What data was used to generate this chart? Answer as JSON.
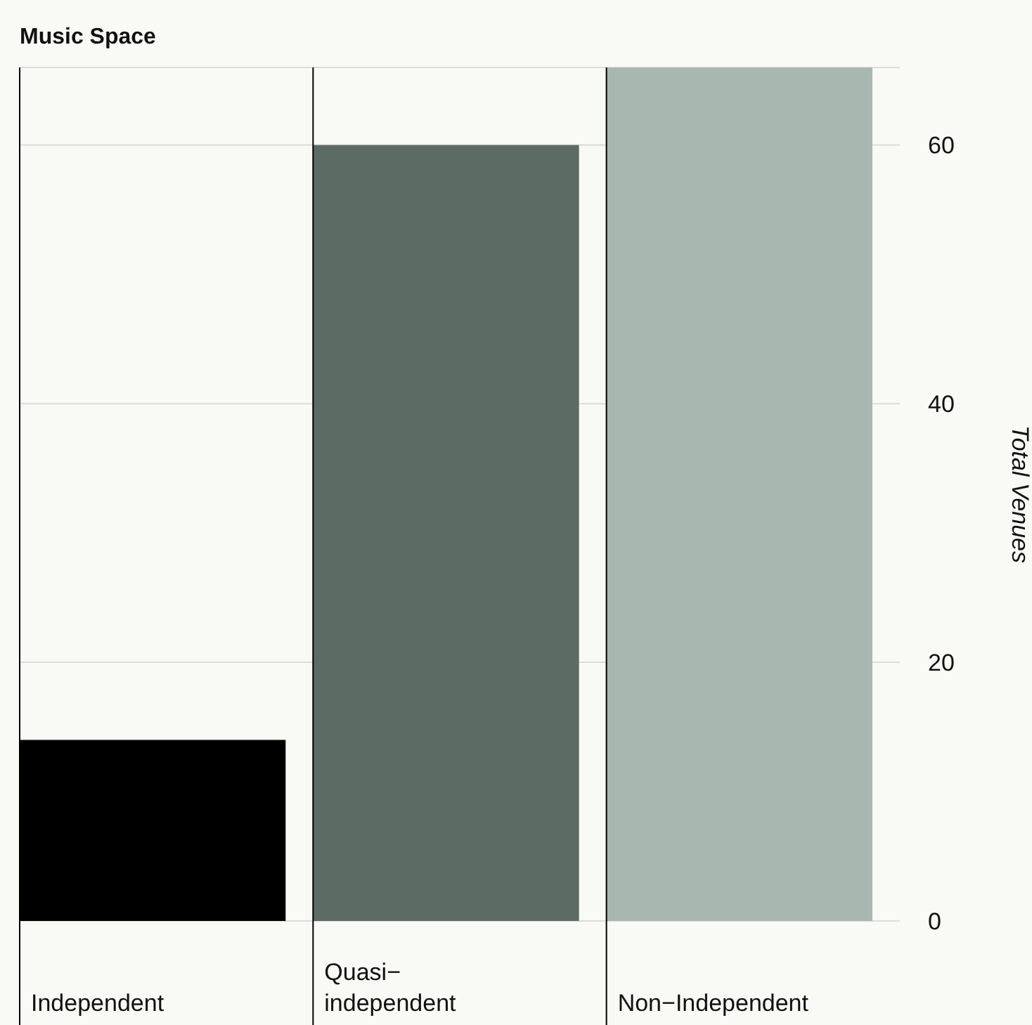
{
  "chart_data": {
    "type": "bar",
    "title": "Music Space",
    "ylabel": "Total Venues",
    "categories": [
      "Independent",
      "Quasi−independent",
      "Non−Independent"
    ],
    "values": [
      14,
      60,
      66
    ],
    "colors": [
      "#000000",
      "#5c6b63",
      "#a8b8b0"
    ],
    "ylim": [
      0,
      66
    ],
    "yticks": [
      0,
      20,
      40,
      60
    ],
    "grid": "y",
    "ref_lines": [
      {
        "axis": "x",
        "value": "Independent",
        "color": "#000000"
      },
      {
        "axis": "x",
        "value": "Quasi−independent",
        "color": "#000000"
      },
      {
        "axis": "x",
        "value": "Non−Independent",
        "color": "#000000"
      }
    ]
  }
}
